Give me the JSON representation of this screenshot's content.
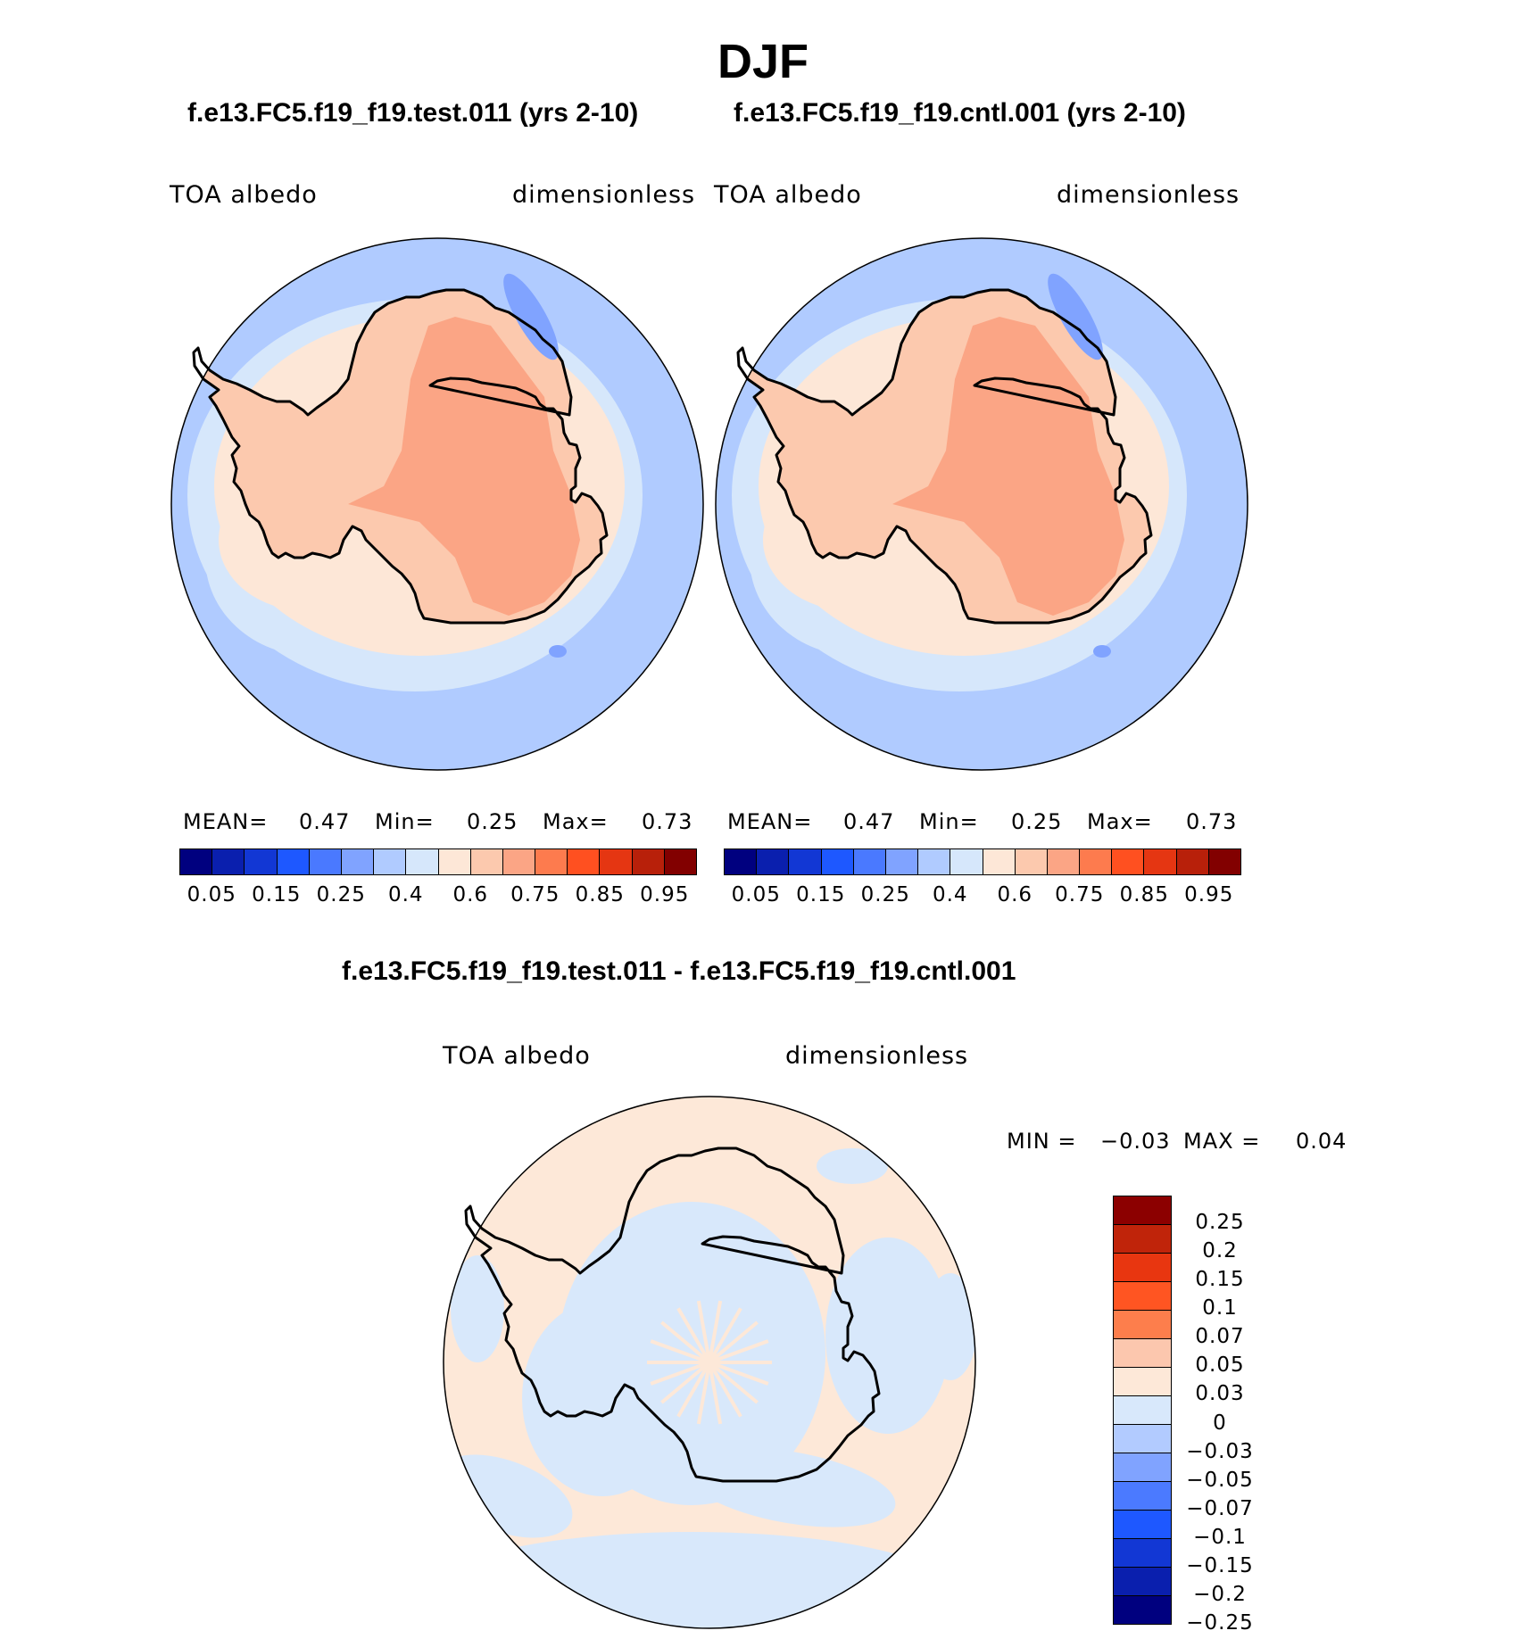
{
  "figure": {
    "title": "DJF",
    "case_test": "f.e13.FC5.f19_f19.test.011 (yrs 2-10)",
    "case_cntl": "f.e13.FC5.f19_f19.cntl.001 (yrs 2-10)",
    "diff_title": "f.e13.FC5.f19_f19.test.011 - f.e13.FC5.f19_f19.cntl.001"
  },
  "panels": {
    "test": {
      "variable": "TOA  albedo",
      "units": "dimensionless",
      "mean_label": "MEAN=",
      "mean_value": "0.47",
      "min_label": "Min=",
      "min_value": "0.25",
      "max_label": "Max=",
      "max_value": "0.73"
    },
    "cntl": {
      "variable": "TOA  albedo",
      "units": "dimensionless",
      "mean_label": "MEAN=",
      "mean_value": "0.47",
      "min_label": "Min=",
      "min_value": "0.25",
      "max_label": "Max=",
      "max_value": "0.73"
    },
    "diff": {
      "variable": "TOA  albedo",
      "units": "dimensionless",
      "min_label": "MIN =",
      "min_value": "−0.03",
      "max_label": "MAX =",
      "max_value": "0.04"
    }
  },
  "colorbar_abs": {
    "colors": [
      "#00007f",
      "#0a1fae",
      "#1237d4",
      "#1e58ff",
      "#4a79ff",
      "#80a3ff",
      "#b0cbff",
      "#d6e7fb",
      "#fde7d7",
      "#fcc9ae",
      "#fba585",
      "#fd7b4e",
      "#ff5020",
      "#e53612",
      "#b8200a",
      "#820000"
    ],
    "tick_labels": [
      "0.05",
      "0.15",
      "0.25",
      "0.4",
      "0.6",
      "0.75",
      "0.85",
      "0.95"
    ]
  },
  "colorbar_diff": {
    "colors_top_to_bottom": [
      "#8c0000",
      "#c0240a",
      "#e83610",
      "#ff5522",
      "#fd7e4c",
      "#fcc7ae",
      "#fde8d8",
      "#d8e8fb",
      "#b2cbff",
      "#80a3ff",
      "#4b7aff",
      "#1e58ff",
      "#1237d4",
      "#0a1fae",
      "#00007f"
    ],
    "tick_labels": [
      "0.25",
      "0.2",
      "0.15",
      "0.1",
      "0.07",
      "0.05",
      "0.03",
      "0",
      "−0.03",
      "−0.05",
      "−0.07",
      "−0.1",
      "−0.15",
      "−0.2",
      "−0.25"
    ]
  },
  "map_colors": {
    "ocean_abs": "#b0cbff",
    "ring_abs": "#d6e7fb",
    "pale_abs": "#fde7d7",
    "ice_abs": "#fcc9ae",
    "core_abs": "#fba585",
    "patch_abs": "#80a3ff",
    "diff_main": "#fde8d8",
    "diff_blue": "#d8e8fb"
  }
}
